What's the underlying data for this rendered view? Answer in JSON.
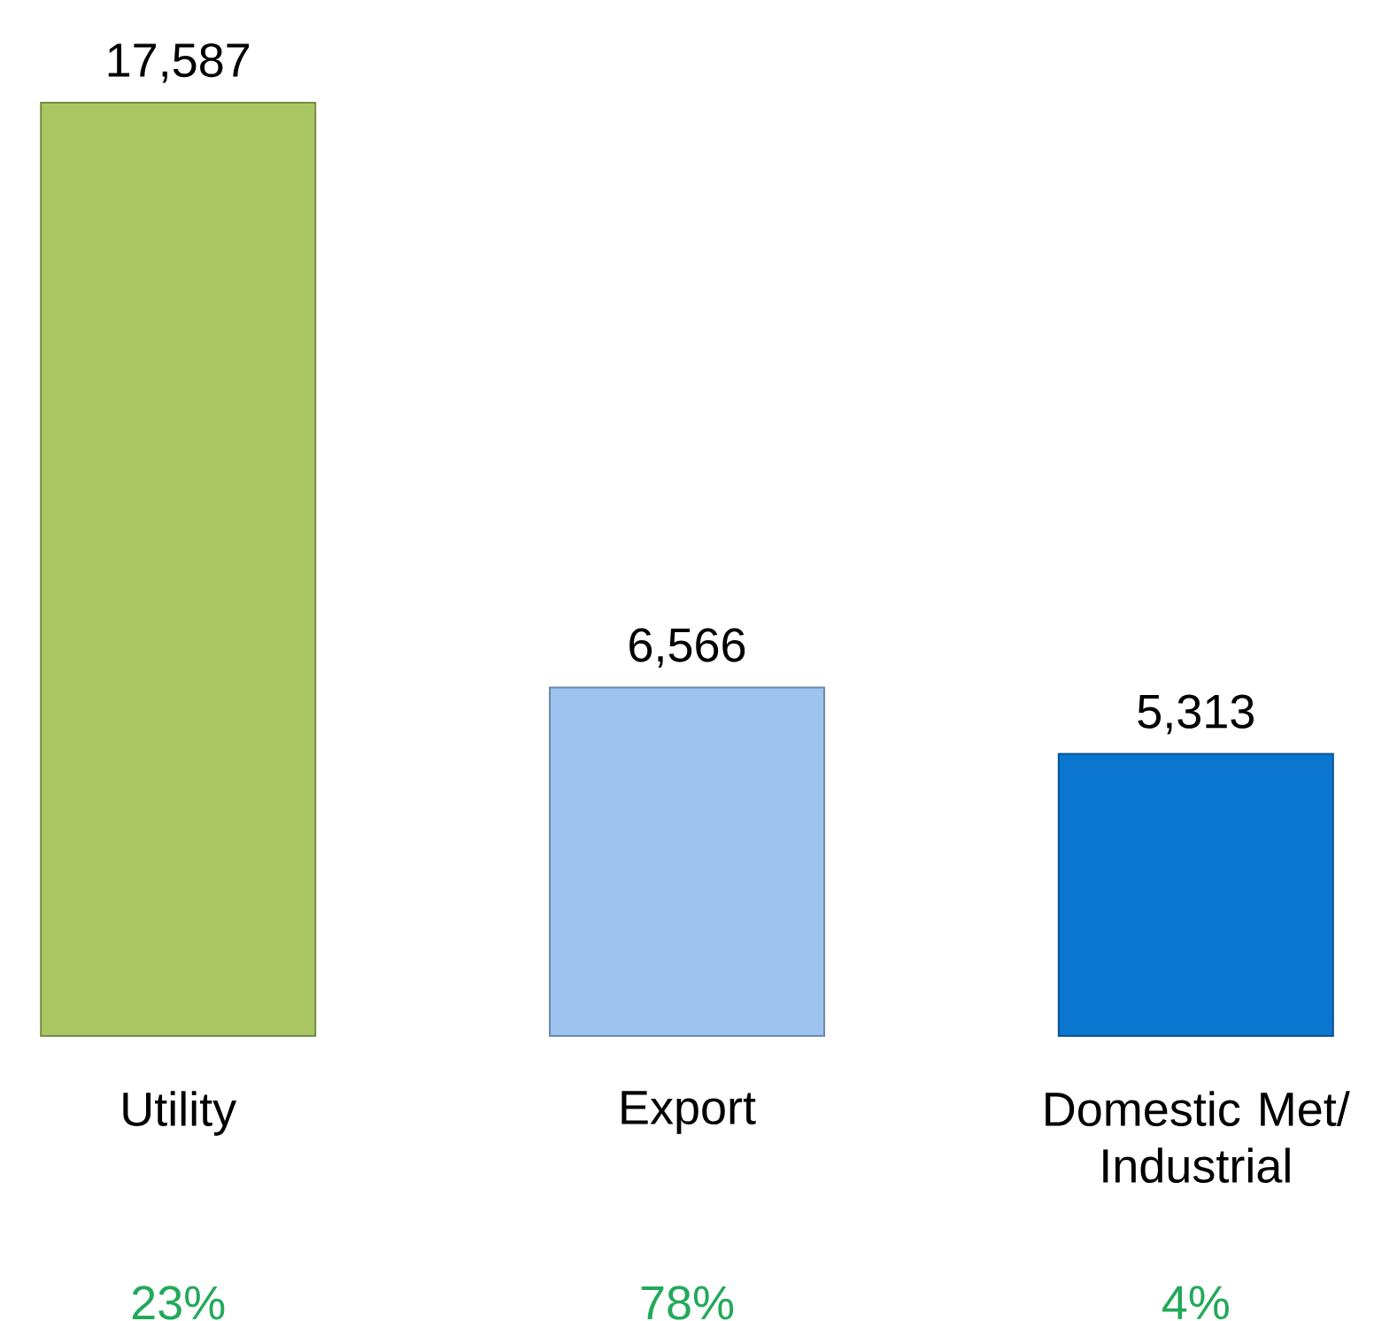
{
  "chart_data": {
    "type": "bar",
    "categories": [
      "Utility",
      "Export",
      "Domestic Met/ Industrial"
    ],
    "values": [
      17587,
      6566,
      5313
    ],
    "colors": [
      "#a9c663",
      "#9dc3ef",
      "#0a76cf"
    ],
    "value_labels": [
      "17,587",
      "6,566",
      "5,313"
    ],
    "annotations": [
      "23%",
      "78%",
      "4%"
    ]
  }
}
